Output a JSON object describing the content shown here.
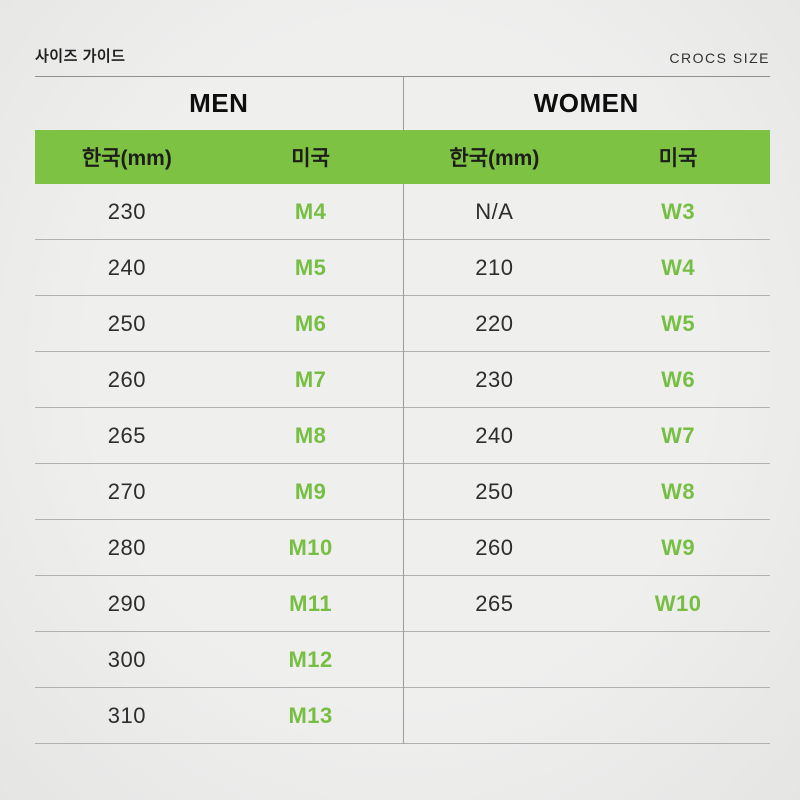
{
  "header": {
    "left_label": "사이즈 가이드",
    "right_label": "CROCS SIZE"
  },
  "colors": {
    "background": "#ececeb",
    "green_bar": "#7dc242",
    "green_size_text": "#76bf43",
    "dark_text": "#1f1f1f",
    "row_separator": "#b1b1b0",
    "divider": "#9c9c9b"
  },
  "chart_data": [
    {
      "type": "table",
      "title": "MEN",
      "columns": [
        "한국(mm)",
        "미국"
      ],
      "rows": [
        [
          "230",
          "M4"
        ],
        [
          "240",
          "M5"
        ],
        [
          "250",
          "M6"
        ],
        [
          "260",
          "M7"
        ],
        [
          "265",
          "M8"
        ],
        [
          "270",
          "M9"
        ],
        [
          "280",
          "M10"
        ],
        [
          "290",
          "M11"
        ],
        [
          "300",
          "M12"
        ],
        [
          "310",
          "M13"
        ]
      ]
    },
    {
      "type": "table",
      "title": "WOMEN",
      "columns": [
        "한국(mm)",
        "미국"
      ],
      "rows": [
        [
          "N/A",
          "W3"
        ],
        [
          "210",
          "W4"
        ],
        [
          "220",
          "W5"
        ],
        [
          "230",
          "W6"
        ],
        [
          "240",
          "W7"
        ],
        [
          "250",
          "W8"
        ],
        [
          "260",
          "W9"
        ],
        [
          "265",
          "W10"
        ]
      ]
    }
  ]
}
